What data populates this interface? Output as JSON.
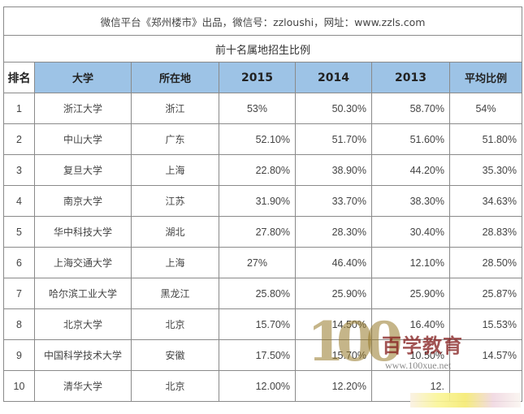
{
  "source_line": "微信平台《郑州楼市》出品，微信号：zzloushi，网址：www.zzls.com",
  "table_title": "前十名属地招生比例",
  "headers": {
    "rank": "排名",
    "university": "大学",
    "location": "所在地",
    "y2015": "2015",
    "y2014": "2014",
    "y2013": "2013",
    "average": "平均比例"
  },
  "rows": [
    {
      "rank": "1",
      "university": "浙江大学",
      "location": "浙江",
      "y2015": "53%",
      "y2014": "50.30%",
      "y2013": "58.70%",
      "average": "54%"
    },
    {
      "rank": "2",
      "university": "中山大学",
      "location": "广东",
      "y2015": "52.10%",
      "y2014": "51.70%",
      "y2013": "51.60%",
      "average": "51.80%"
    },
    {
      "rank": "3",
      "university": "复旦大学",
      "location": "上海",
      "y2015": "22.80%",
      "y2014": "38.90%",
      "y2013": "44.20%",
      "average": "35.30%"
    },
    {
      "rank": "4",
      "university": "南京大学",
      "location": "江苏",
      "y2015": "31.90%",
      "y2014": "33.70%",
      "y2013": "38.30%",
      "average": "34.63%"
    },
    {
      "rank": "5",
      "university": "华中科技大学",
      "location": "湖北",
      "y2015": "27.80%",
      "y2014": "28.30%",
      "y2013": "30.40%",
      "average": "28.83%"
    },
    {
      "rank": "6",
      "university": "上海交通大学",
      "location": "上海",
      "y2015": "27%",
      "y2014": "46.40%",
      "y2013": "12.10%",
      "average": "28.50%"
    },
    {
      "rank": "7",
      "university": "哈尔滨工业大学",
      "location": "黑龙江",
      "y2015": "25.80%",
      "y2014": "25.90%",
      "y2013": "25.90%",
      "average": "25.87%"
    },
    {
      "rank": "8",
      "university": "北京大学",
      "location": "北京",
      "y2015": "15.70%",
      "y2014": "14.50%",
      "y2013": "16.40%",
      "average": "15.53%"
    },
    {
      "rank": "9",
      "university": "中国科学技术大学",
      "location": "安徽",
      "y2015": "17.50%",
      "y2014": "15.70%",
      "y2013": "10.50%",
      "average": "14.57%"
    },
    {
      "rank": "10",
      "university": "清华大学",
      "location": "北京",
      "y2015": "12.00%",
      "y2014": "12.20%",
      "y2013": "12.",
      "average": ""
    }
  ],
  "watermark": {
    "logo": "100",
    "brand": "百学教育",
    "url": "www.100xue.net"
  }
}
